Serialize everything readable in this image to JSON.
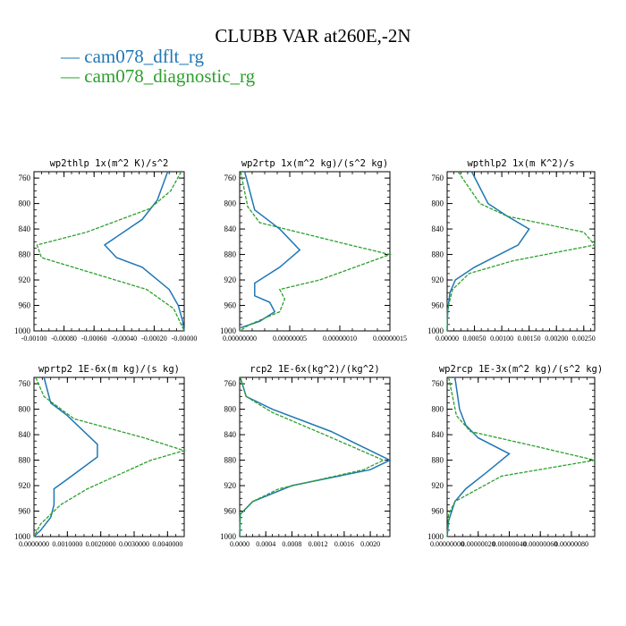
{
  "title": "CLUBB VAR at260E,-2N",
  "colors": {
    "blue": "#1f77b4",
    "green": "#2ca02c"
  },
  "legend": [
    {
      "label": "cam078_dflt_rg",
      "color": "#1f77b4"
    },
    {
      "label": "cam078_diagnostic_rg",
      "color": "#2ca02c"
    }
  ],
  "chart_data": [
    {
      "type": "line",
      "title": "wp2thlp  1x(m^2 K)/s^2",
      "y_ticks": [
        "760",
        "800",
        "840",
        "880",
        "920",
        "960",
        "1000"
      ],
      "ylim": [
        1000,
        750
      ],
      "xlim": [
        -0.001,
        0.0
      ],
      "x_ticks": [
        "-0.00100",
        "-0.00080",
        "-0.00060",
        "-0.00040",
        "-0.00020",
        "-0.00000"
      ],
      "x_tick_values": [
        -0.001,
        -0.0008,
        -0.0006,
        -0.0004,
        -0.0002,
        0.0
      ],
      "series": [
        {
          "name": "cam078_dflt_rg",
          "color": "#1f77b4",
          "x": [
            -0.00011,
            -0.00018,
            -0.00028,
            -0.00053,
            -0.00045,
            -0.00028,
            -0.0001,
            -4e-05,
            -1e-05,
            0.0
          ],
          "y": [
            750,
            795,
            825,
            865,
            885,
            900,
            935,
            960,
            985,
            1000
          ]
        },
        {
          "name": "cam078_diagnostic_rg",
          "color": "#2ca02c",
          "x": [
            -2e-05,
            -9e-05,
            -0.00023,
            -0.00065,
            -0.00098,
            -0.00095,
            -0.0006,
            -0.00025,
            -7e-05,
            0.0
          ],
          "y": [
            750,
            780,
            808,
            845,
            865,
            885,
            910,
            935,
            965,
            1000
          ]
        }
      ]
    },
    {
      "type": "line",
      "title": "wp2rtp  1x(m^2 kg)/(s^2 kg)",
      "y_ticks": [
        "760",
        "800",
        "840",
        "880",
        "920",
        "960",
        "1000"
      ],
      "ylim": [
        1000,
        750
      ],
      "xlim": [
        0.0,
        1.5e-07
      ],
      "x_ticks": [
        "0.00000000",
        "0.00000005",
        "0.00000010",
        "0.00000015"
      ],
      "x_tick_values": [
        0.0,
        5e-08,
        1e-07,
        1.5e-07
      ],
      "series": [
        {
          "name": "cam078_dflt_rg",
          "color": "#1f77b4",
          "x": [
            5e-09,
            1.5e-08,
            4e-08,
            6e-08,
            4e-08,
            1.5e-08,
            1.5e-08,
            3e-08,
            3.5e-08,
            2e-08,
            1e-09
          ],
          "y": [
            750,
            810,
            840,
            873,
            900,
            925,
            945,
            955,
            970,
            985,
            995
          ]
        },
        {
          "name": "cam078_diagnostic_rg",
          "color": "#2ca02c",
          "x": [
            1e-09,
            8e-09,
            2e-08,
            1.1e-07,
            1.5e-07,
            8e-08,
            4e-08,
            4.5e-08,
            4e-08,
            1e-08,
            0.0
          ],
          "y": [
            750,
            805,
            830,
            865,
            880,
            920,
            935,
            950,
            970,
            990,
            1000
          ]
        }
      ]
    },
    {
      "type": "line",
      "title": "wpthlp2  1x(m K^2)/s",
      "y_ticks": [
        "760",
        "800",
        "840",
        "880",
        "920",
        "960",
        "1000"
      ],
      "ylim": [
        1000,
        750
      ],
      "xlim": [
        0.0,
        0.0027
      ],
      "x_ticks": [
        "0.00000",
        "0.00050",
        "0.00100",
        "0.00150",
        "0.00200",
        "0.00250"
      ],
      "x_tick_values": [
        0.0,
        0.0005,
        0.001,
        0.0015,
        0.002,
        0.0025
      ],
      "series": [
        {
          "name": "cam078_dflt_rg",
          "color": "#1f77b4",
          "x": [
            0.00045,
            0.00075,
            0.0011,
            0.0015,
            0.0013,
            0.0005,
            0.00015,
            5e-05,
            1e-05,
            0.0
          ],
          "y": [
            750,
            800,
            820,
            840,
            865,
            900,
            920,
            940,
            970,
            1000
          ]
        },
        {
          "name": "cam078_diagnostic_rg",
          "color": "#2ca02c",
          "x": [
            0.0002,
            0.0006,
            0.0011,
            0.0025,
            0.0027,
            0.0012,
            0.0004,
            0.0001,
            1e-05,
            0.0
          ],
          "y": [
            750,
            800,
            820,
            845,
            865,
            890,
            910,
            935,
            965,
            1000
          ]
        }
      ]
    },
    {
      "type": "line",
      "title": "wprtp2  1E-6x(m kg)/(s kg)",
      "y_ticks": [
        "760",
        "800",
        "840",
        "880",
        "920",
        "960",
        "1000"
      ],
      "ylim": [
        1000,
        750
      ],
      "xlim": [
        0.0,
        0.0045
      ],
      "x_ticks": [
        "0.0000000",
        "0.0010000",
        "0.0020000",
        "0.0030000",
        "0.0040000"
      ],
      "x_tick_values": [
        0.0,
        0.001,
        0.002,
        0.003,
        0.004
      ],
      "series": [
        {
          "name": "cam078_dflt_rg",
          "color": "#1f77b4",
          "x": [
            0.0003,
            0.0005,
            0.001,
            0.0019,
            0.0019,
            0.001,
            0.0006,
            0.0006,
            0.0005,
            0.0002,
            0.0
          ],
          "y": [
            750,
            790,
            810,
            855,
            875,
            910,
            925,
            950,
            970,
            990,
            1000
          ]
        },
        {
          "name": "cam078_diagnostic_rg",
          "color": "#2ca02c",
          "x": [
            5e-05,
            0.0003,
            0.0012,
            0.0033,
            0.0045,
            0.0035,
            0.0016,
            0.0008,
            0.0002,
            0.0
          ],
          "y": [
            750,
            780,
            815,
            845,
            865,
            880,
            925,
            950,
            980,
            1000
          ]
        }
      ]
    },
    {
      "type": "line",
      "title": "rcp2  1E-6x(kg^2)/(kg^2)",
      "y_ticks": [
        "760",
        "800",
        "840",
        "880",
        "920",
        "960",
        "1000"
      ],
      "ylim": [
        1000,
        750
      ],
      "xlim": [
        0.0,
        0.0023
      ],
      "x_ticks": [
        "0.0000",
        "0.0004",
        "0.0008",
        "0.0012",
        "0.0016",
        "0.0020"
      ],
      "x_tick_values": [
        0.0,
        0.0004,
        0.0008,
        0.0012,
        0.0016,
        0.002
      ],
      "series": [
        {
          "name": "cam078_dflt_rg",
          "color": "#1f77b4",
          "x": [
            1e-05,
            0.0001,
            0.0005,
            0.0014,
            0.0023,
            0.002,
            0.0008,
            0.0002,
            1e-05,
            0.0
          ],
          "y": [
            750,
            780,
            800,
            835,
            880,
            895,
            920,
            945,
            965,
            1000
          ]
        },
        {
          "name": "cam078_diagnostic_rg",
          "color": "#2ca02c",
          "x": [
            1e-05,
            0.0001,
            0.0005,
            0.0013,
            0.0022,
            0.0019,
            0.0006,
            0.0002,
            1e-05,
            0.0
          ],
          "y": [
            750,
            780,
            805,
            840,
            880,
            895,
            925,
            945,
            965,
            1000
          ]
        }
      ]
    },
    {
      "type": "line",
      "title": "wp2rcp  1E-3x(m^2 kg)/(s^2 kg)",
      "y_ticks": [
        "760",
        "800",
        "840",
        "880",
        "920",
        "960",
        "1000"
      ],
      "ylim": [
        1000,
        750
      ],
      "xlim": [
        0.0,
        9.5e-07
      ],
      "x_ticks": [
        "0.00000000",
        "0.00000020",
        "0.00000040",
        "0.00000060",
        "0.00000080"
      ],
      "x_tick_values": [
        0.0,
        2e-07,
        4e-07,
        6e-07,
        8e-07
      ],
      "series": [
        {
          "name": "cam078_dflt_rg",
          "color": "#1f77b4",
          "x": [
            5e-08,
            8e-08,
            1.2e-07,
            2e-07,
            4e-07,
            2.5e-07,
            1.2e-07,
            5e-08,
            1e-08,
            0.0
          ],
          "y": [
            750,
            800,
            825,
            845,
            870,
            900,
            925,
            945,
            975,
            1000
          ]
        },
        {
          "name": "cam078_diagnostic_rg",
          "color": "#2ca02c",
          "x": [
            1e-08,
            6e-08,
            1.5e-07,
            6e-07,
            9.5e-07,
            3.5e-07,
            5e-08,
            1e-08,
            0.0
          ],
          "y": [
            750,
            810,
            835,
            860,
            880,
            905,
            945,
            965,
            1000
          ]
        }
      ]
    }
  ]
}
